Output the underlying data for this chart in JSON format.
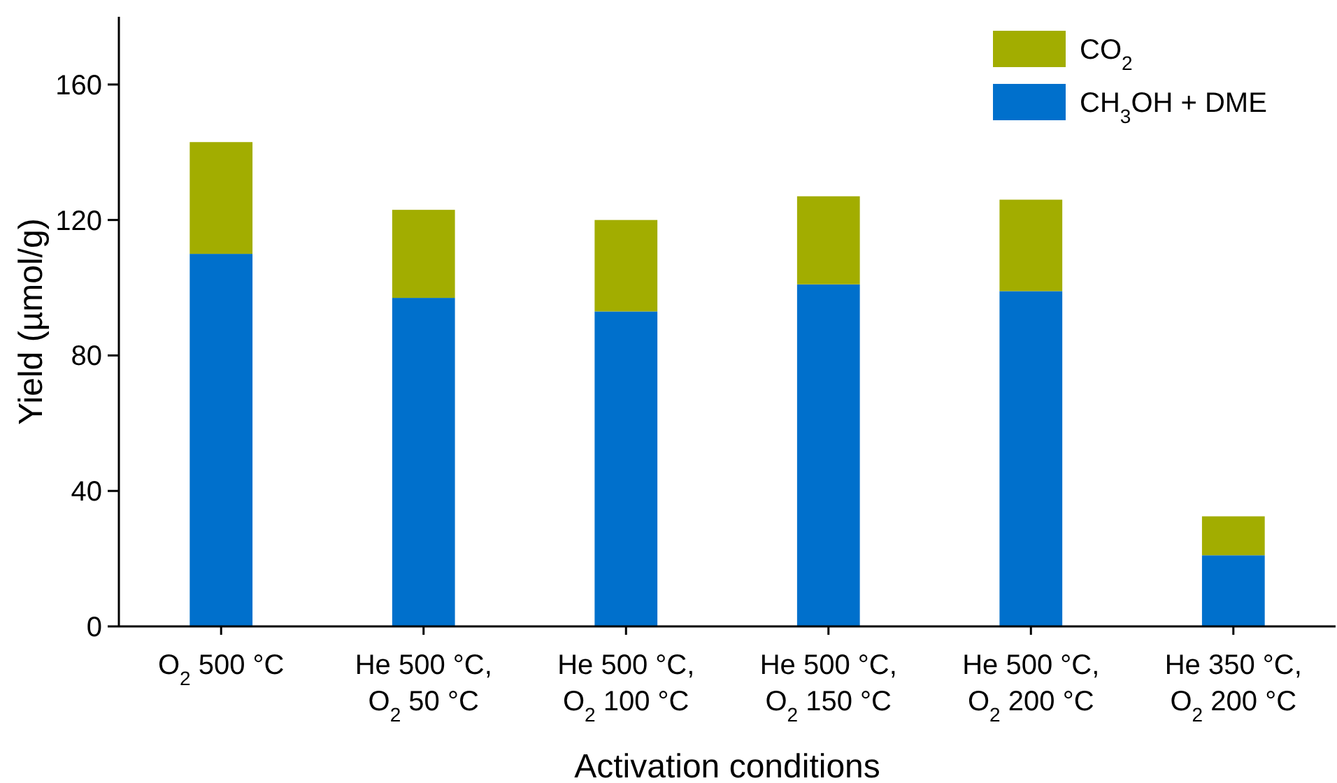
{
  "chart_data": {
    "type": "bar",
    "stacked": true,
    "xlabel": "Activation conditions",
    "ylabel": "Yield (µmol/g)",
    "categories": [
      "O$_{2}$ 500 °C",
      "He 500 °C,\nO$_{2}$ 50 °C",
      "He 500 °C,\nO$_{2}$ 100 °C",
      "He 500 °C,\nO$_{2}$ 150 °C",
      "He 500 °C,\nO$_{2}$ 200 °C",
      "He 350 °C,\nO$_{2}$ 200 °C"
    ],
    "series": [
      {
        "name": "CH$_{3}$OH + DME",
        "color": "#0070cc",
        "values": [
          110,
          97,
          93,
          101,
          99,
          21
        ]
      },
      {
        "name": "CO$_{2}$",
        "color": "#a2ad00",
        "values": [
          33,
          26,
          27,
          26,
          27,
          11.5
        ]
      }
    ],
    "ylim": [
      0,
      180
    ],
    "yticks": [
      0,
      40,
      80,
      120,
      160
    ],
    "grid": false,
    "legend": "top right"
  }
}
